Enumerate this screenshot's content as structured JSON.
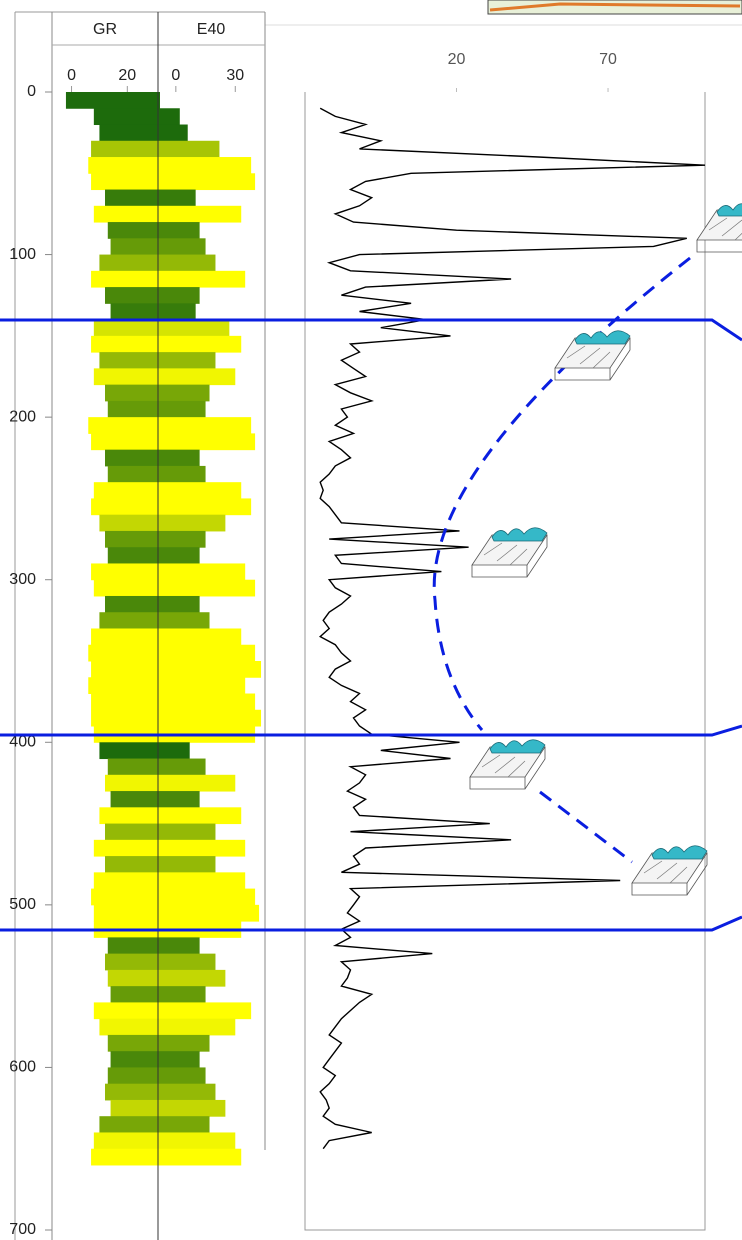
{
  "chart_data": [
    {
      "type": "area",
      "x": [
        0,
        10,
        20,
        30,
        40,
        50,
        60,
        70,
        80,
        90,
        100,
        110,
        120,
        130,
        140,
        150,
        160,
        170,
        180,
        190,
        200,
        210,
        220,
        230,
        240,
        250,
        260,
        270,
        280,
        290,
        300,
        310,
        320,
        330,
        340,
        350,
        360,
        370,
        380,
        390,
        400,
        410,
        420,
        430,
        440,
        450,
        460,
        470,
        480,
        490,
        500,
        510,
        520,
        530,
        540,
        550,
        560,
        570,
        580,
        590,
        600,
        610,
        620,
        630,
        640,
        650
      ],
      "xlim": [
        0,
        700
      ],
      "xticks": [
        0,
        100,
        200,
        300,
        400,
        500,
        600,
        700
      ],
      "series": [
        {
          "name": "GR",
          "color": "#1d6b0c",
          "lim": [
            -7,
            31
          ],
          "ticks": [
            0,
            20
          ],
          "values": [
            -2,
            8,
            10,
            7,
            6,
            7,
            12,
            8,
            13,
            14,
            10,
            7,
            12,
            14,
            8,
            7,
            10,
            8,
            12,
            13,
            6,
            7,
            12,
            13,
            8,
            7,
            10,
            12,
            13,
            7,
            8,
            12,
            10,
            7,
            6,
            7,
            6,
            7,
            7,
            8,
            10,
            13,
            12,
            14,
            10,
            12,
            8,
            12,
            8,
            7,
            8,
            8,
            13,
            12,
            13,
            14,
            8,
            10,
            13,
            14,
            13,
            12,
            14,
            10,
            8,
            7
          ]
        },
        {
          "name": "E40",
          "color": "#ffff00",
          "lim": [
            -9,
            45
          ],
          "ticks": [
            0,
            30
          ],
          "values": [
            -8,
            2,
            6,
            22,
            38,
            40,
            10,
            33,
            12,
            15,
            20,
            35,
            12,
            10,
            27,
            33,
            20,
            30,
            17,
            15,
            38,
            40,
            12,
            15,
            33,
            38,
            25,
            15,
            12,
            35,
            40,
            12,
            17,
            33,
            40,
            43,
            35,
            40,
            43,
            40,
            7,
            15,
            30,
            12,
            33,
            20,
            35,
            20,
            35,
            40,
            42,
            33,
            12,
            20,
            25,
            15,
            38,
            30,
            17,
            12,
            15,
            20,
            25,
            17,
            30,
            33
          ]
        }
      ]
    },
    {
      "type": "line",
      "x": [
        10,
        15,
        20,
        25,
        30,
        35,
        40,
        45,
        50,
        55,
        60,
        65,
        70,
        75,
        80,
        85,
        90,
        95,
        100,
        105,
        110,
        115,
        120,
        125,
        130,
        135,
        140,
        145,
        150,
        155,
        160,
        165,
        170,
        175,
        180,
        185,
        190,
        195,
        200,
        205,
        210,
        215,
        220,
        225,
        230,
        235,
        240,
        245,
        250,
        255,
        260,
        265,
        270,
        275,
        280,
        285,
        290,
        295,
        300,
        305,
        310,
        315,
        320,
        325,
        330,
        335,
        340,
        345,
        350,
        355,
        360,
        365,
        370,
        375,
        380,
        385,
        390,
        395,
        400,
        405,
        410,
        415,
        420,
        425,
        430,
        435,
        440,
        445,
        450,
        455,
        460,
        465,
        470,
        475,
        480,
        485,
        490,
        495,
        500,
        505,
        510,
        515,
        520,
        525,
        530,
        535,
        540,
        545,
        550,
        555,
        560,
        565,
        570,
        575,
        580,
        585,
        590,
        595,
        600,
        605,
        610,
        615,
        620,
        625,
        630,
        635,
        640,
        645,
        650
      ],
      "xlim": [
        0,
        700
      ],
      "values": [
        -25,
        -20,
        -10,
        -18,
        -5,
        -12,
        47,
        102,
        5,
        -10,
        -15,
        -8,
        -12,
        -20,
        -14,
        20,
        96,
        85,
        -12,
        -22,
        -15,
        38,
        -10,
        -18,
        5,
        -12,
        10,
        -5,
        18,
        -15,
        -12,
        -18,
        -14,
        -10,
        -20,
        -15,
        -8,
        -18,
        -16,
        -20,
        -14,
        -22,
        -18,
        -15,
        -20,
        -22,
        -25,
        -24,
        -25,
        -22,
        -20,
        -18,
        21,
        -22,
        24,
        -20,
        -18,
        15,
        -22,
        -20,
        -15,
        -18,
        -22,
        -24,
        -22,
        -25,
        -20,
        -18,
        -15,
        -20,
        -22,
        -18,
        -12,
        -15,
        -10,
        -14,
        -12,
        -8,
        21,
        -5,
        18,
        -15,
        -10,
        -12,
        -16,
        -10,
        -14,
        -12,
        31,
        -15,
        38,
        -10,
        -14,
        -12,
        -18,
        74,
        -15,
        -12,
        -14,
        -16,
        -12,
        -18,
        -15,
        -20,
        12,
        -18,
        -15,
        -16,
        -18,
        -8,
        -12,
        -15,
        -18,
        -20,
        -22,
        -18,
        -20,
        -22,
        -24,
        -20,
        -22,
        -25,
        -23,
        -22,
        -24,
        -20,
        -8,
        -22,
        -24
      ],
      "ylim": [
        -30,
        102
      ],
      "yticks": [
        20,
        70
      ],
      "color": "#000000"
    }
  ]
}
